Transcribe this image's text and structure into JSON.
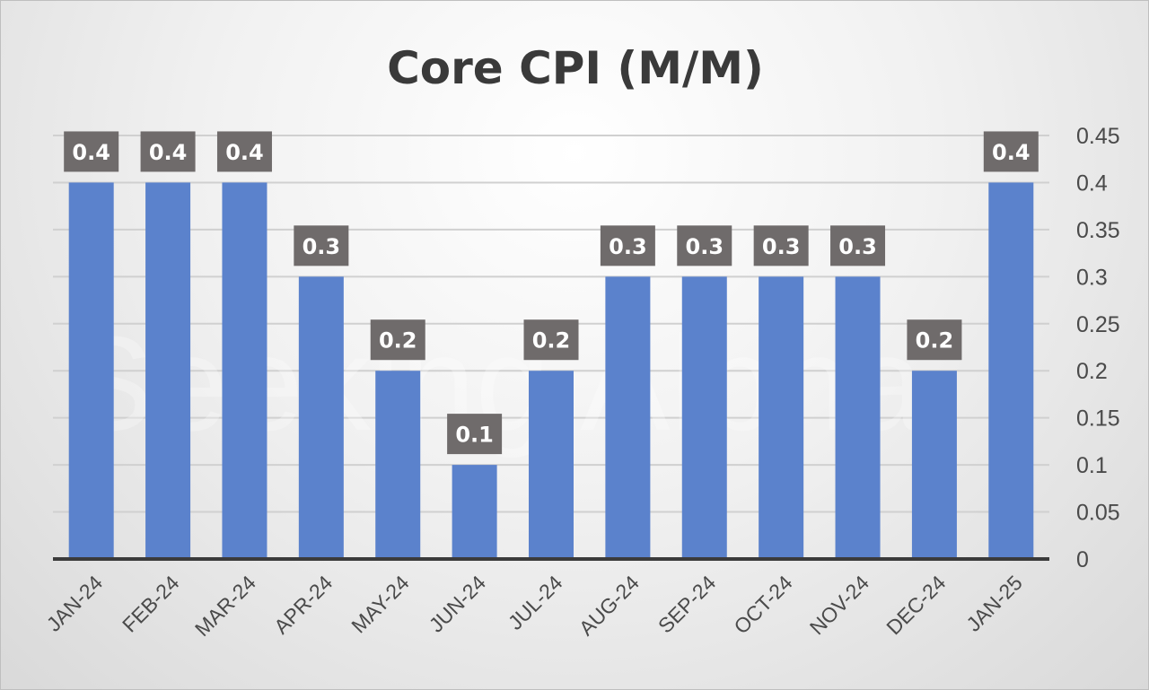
{
  "chart_data": {
    "type": "bar",
    "title": "Core CPI (M/M)",
    "categories": [
      "JAN-24",
      "FEB-24",
      "MAR-24",
      "APR-24",
      "MAY-24",
      "JUN-24",
      "JUL-24",
      "AUG-24",
      "SEP-24",
      "OCT-24",
      "NOV-24",
      "DEC-24",
      "JAN-25"
    ],
    "values": [
      0.4,
      0.4,
      0.4,
      0.3,
      0.2,
      0.1,
      0.2,
      0.3,
      0.3,
      0.3,
      0.3,
      0.2,
      0.4
    ],
    "data_labels": [
      "0.4",
      "0.4",
      "0.4",
      "0.3",
      "0.2",
      "0.1",
      "0.2",
      "0.3",
      "0.3",
      "0.3",
      "0.3",
      "0.2",
      "0.4"
    ],
    "y_ticks": [
      0,
      0.05,
      0.1,
      0.15,
      0.2,
      0.25,
      0.3,
      0.35,
      0.4,
      0.45
    ],
    "y_tick_labels": [
      "0",
      "0.05",
      "0.1",
      "0.15",
      "0.2",
      "0.25",
      "0.3",
      "0.35",
      "0.4",
      "0.45"
    ],
    "ylim": [
      0,
      0.45
    ],
    "y_axis_side": "right",
    "grid": true,
    "legend": "none",
    "bar_color": "#5b82cc",
    "label_box_color": "#6f6b6b",
    "watermark": "Seeking Alpha"
  }
}
